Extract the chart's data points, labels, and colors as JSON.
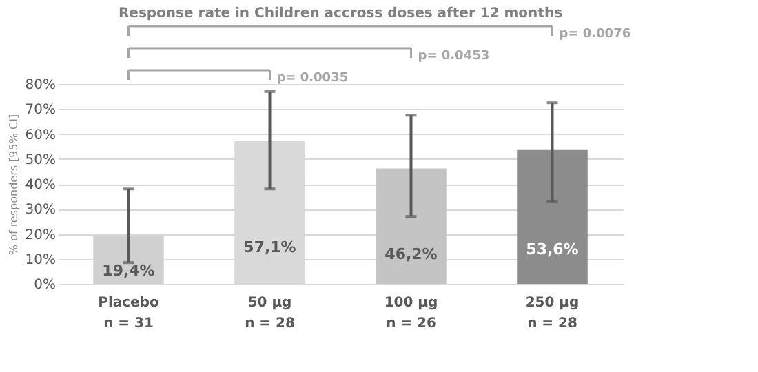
{
  "chart_data": {
    "type": "bar",
    "title": "Response rate in Children accross doses after 12 months",
    "ylabel": "% of responders [95% CI]",
    "categories": [
      "Placebo\nn = 31",
      "50 µg\nn = 28",
      "100 µg\nn = 26",
      "250 µg\nn = 28"
    ],
    "values": [
      19.4,
      57.1,
      46.2,
      53.6
    ],
    "colors": [
      "#d0d0d0",
      "#d9d9d9",
      "#c4c4c4",
      "#8c8c8c"
    ],
    "errors": [
      [
        8.5,
        38
      ],
      [
        38,
        77
      ],
      [
        27,
        67.5
      ],
      [
        33,
        72.5
      ]
    ],
    "value_labels": [
      "19,4%",
      "57,1%",
      "46,2%",
      "53,6%"
    ],
    "annotations": [
      "p= 0.0035",
      "p= 0.0453",
      "p= 0.0076"
    ],
    "ylim": [
      0,
      80
    ],
    "yticks": [
      {
        "value": 0,
        "label": "0%"
      },
      {
        "value": 10,
        "label": "10%"
      },
      {
        "value": 20,
        "label": "20%"
      },
      {
        "value": 30,
        "label": "30%"
      },
      {
        "value": 40,
        "label": "40%"
      },
      {
        "value": 50,
        "label": "50%"
      },
      {
        "value": 60,
        "label": "60%"
      },
      {
        "value": 70,
        "label": "70%"
      },
      {
        "value": 80,
        "label": "80%"
      }
    ],
    "grid": "y"
  }
}
